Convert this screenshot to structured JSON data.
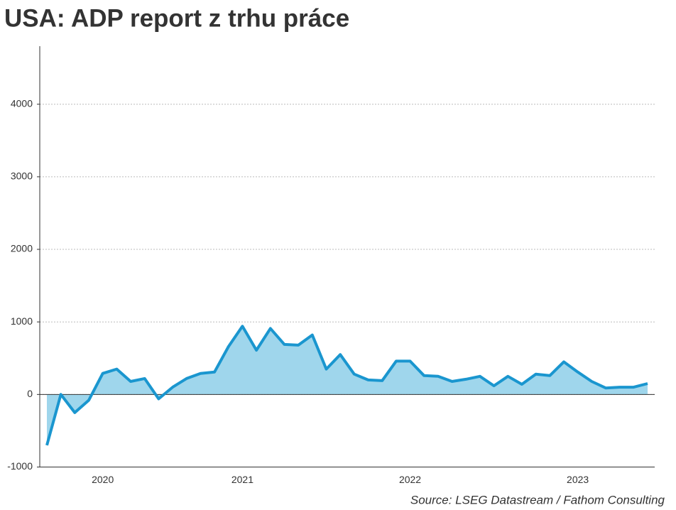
{
  "chart_data": {
    "type": "area",
    "title": "USA: ADP report z trhu práce",
    "source": "Source: LSEG Datastream / Fathom Consulting",
    "categories": [
      null,
      null,
      null,
      null,
      "2020",
      null,
      null,
      null,
      null,
      null,
      null,
      null,
      null,
      null,
      "2021",
      null,
      null,
      null,
      null,
      null,
      null,
      null,
      null,
      null,
      null,
      null,
      "2022",
      null,
      null,
      null,
      null,
      null,
      null,
      null,
      null,
      null,
      null,
      null,
      "2023",
      null,
      null,
      null,
      null,
      null
    ],
    "values": [
      -700,
      0,
      -250,
      -80,
      290,
      350,
      180,
      220,
      -60,
      100,
      220,
      290,
      310,
      660,
      940,
      610,
      910,
      690,
      680,
      820,
      350,
      550,
      280,
      200,
      190,
      460,
      460,
      260,
      250,
      180,
      210,
      250,
      120,
      250,
      140,
      280,
      260,
      450,
      310,
      180,
      90,
      100,
      100,
      150
    ],
    "color": "#1a96cf",
    "fill": "#9fd6ec",
    "ylim": [
      -1000,
      4800
    ],
    "yticks": [
      -1000,
      0,
      1000,
      2000,
      3000,
      4000
    ],
    "grid": true
  }
}
